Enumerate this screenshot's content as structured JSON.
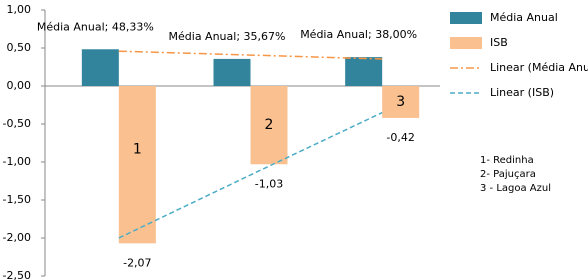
{
  "chart_data": {
    "type": "bar",
    "categories": [
      "1",
      "2",
      "3"
    ],
    "series": [
      {
        "name": "Média Anual",
        "color": "#31849b",
        "values": [
          0.4833,
          0.3567,
          0.38
        ],
        "value_labels": [
          "Média Anual; 48,33%",
          "Média Anual; 35,67%",
          "Média Anual; 38,00%"
        ]
      },
      {
        "name": "ISB",
        "color": "#fac090",
        "values": [
          -2.07,
          -1.03,
          -0.42
        ],
        "value_labels": [
          "-2,07",
          "-1,03",
          "-0,42"
        ]
      },
      {
        "name": "Linear (Média Anual)",
        "kind": "trend",
        "dash": "dashdot",
        "color": "#f79646",
        "values": [
          0.458,
          0.407,
          0.355
        ]
      },
      {
        "name": "Linear (ISB)",
        "kind": "trend",
        "dash": "dash",
        "color": "#4bacc6",
        "values": [
          -2.0,
          -1.17,
          -0.35
        ]
      }
    ],
    "ylim": [
      -2.5,
      1.0
    ],
    "yticks": [
      {
        "value": 1.0,
        "label": "1,00"
      },
      {
        "value": 0.5,
        "label": "0,50"
      },
      {
        "value": 0,
        "label": "0,00"
      },
      {
        "value": -0.5,
        "label": "-0,50"
      },
      {
        "value": -1.0,
        "label": "-1,00"
      },
      {
        "value": -1.5,
        "label": "-1,50"
      },
      {
        "value": -2.0,
        "label": "-2,00"
      },
      {
        "value": -2.5,
        "label": "-2,50"
      }
    ],
    "notes": [
      "1- Redinha",
      "2- Pajuçara",
      "3 - Lagoa Azul"
    ]
  }
}
